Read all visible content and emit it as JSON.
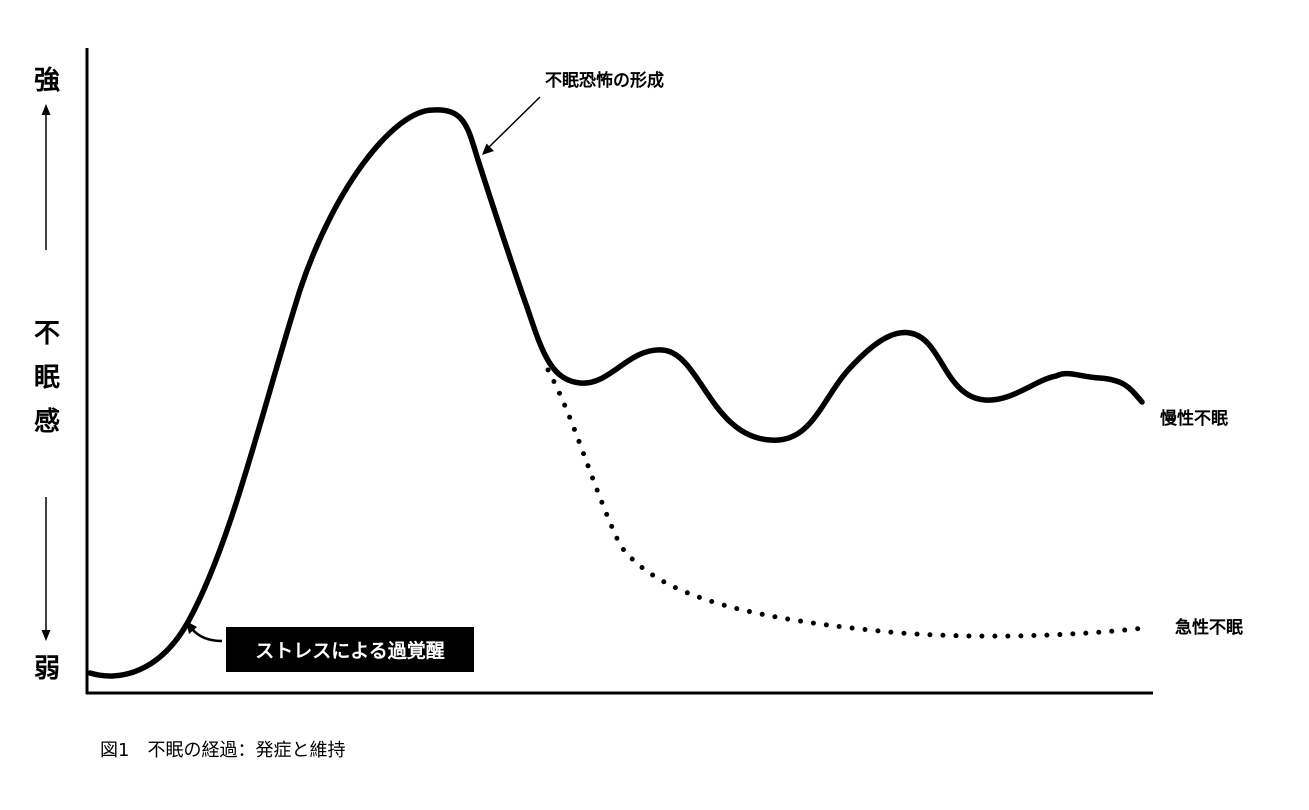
{
  "y_axis": {
    "top_label": "強",
    "bottom_label": "弱",
    "title_chars": [
      "不",
      "眠",
      "感"
    ]
  },
  "annotations": {
    "peak": "不眠恐怖の形成",
    "chronic": "慢性不眠",
    "acute": "急性不眠",
    "stress": "ストレスによる過覚醒"
  },
  "caption": "図1　不眠の経過：発症と維持",
  "colors": {
    "ink": "#000000",
    "background": "#ffffff"
  }
}
